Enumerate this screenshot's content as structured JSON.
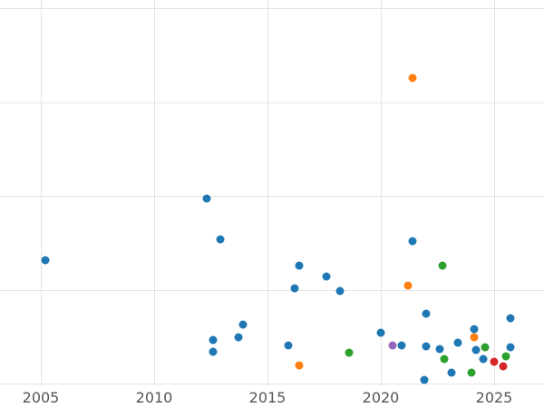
{
  "style": {
    "background": "#ffffff",
    "gridline_color": "#e3e3e3",
    "tick_label_color": "#555555"
  },
  "chart_data": {
    "type": "scatter",
    "title": "",
    "xlabel": "",
    "ylabel": "",
    "xlim": [
      2003.2,
      2027.2
    ],
    "ylim": [
      0,
      100
    ],
    "x_ticks": [
      2005,
      2010,
      2015,
      2020,
      2025
    ],
    "x_tick_labels": [
      "2005",
      "2010",
      "2015",
      "2020",
      "2025"
    ],
    "y_gridlines": [
      0,
      25,
      50,
      75,
      100
    ],
    "grid": true,
    "legend_position": "none",
    "series": [
      {
        "name": "series-blue",
        "color": "#1f77b4",
        "points": [
          [
            2005.2,
            32.9
          ],
          [
            2012.3,
            49.3
          ],
          [
            2012.6,
            11.6
          ],
          [
            2012.6,
            8.5
          ],
          [
            2012.9,
            38.4
          ],
          [
            2013.7,
            12.3
          ],
          [
            2013.9,
            15.7
          ],
          [
            2015.9,
            10.1
          ],
          [
            2016.2,
            25.4
          ],
          [
            2016.4,
            31.4
          ],
          [
            2017.6,
            28.5
          ],
          [
            2018.2,
            24.6
          ],
          [
            2020.0,
            13.5
          ],
          [
            2020.9,
            10.1
          ],
          [
            2021.4,
            37.9
          ],
          [
            2021.9,
            1.0
          ],
          [
            2022.0,
            18.6
          ],
          [
            2022.0,
            9.9
          ],
          [
            2022.6,
            9.2
          ],
          [
            2023.1,
            2.9
          ],
          [
            2023.4,
            10.9
          ],
          [
            2024.1,
            14.5
          ],
          [
            2024.2,
            8.9
          ],
          [
            2024.5,
            6.5
          ],
          [
            2025.7,
            17.4
          ],
          [
            2025.7,
            9.7
          ]
        ]
      },
      {
        "name": "series-orange",
        "color": "#ff7f0e",
        "points": [
          [
            2016.4,
            4.8
          ],
          [
            2021.2,
            26.1
          ],
          [
            2021.4,
            81.4
          ],
          [
            2024.1,
            12.3
          ]
        ]
      },
      {
        "name": "series-green",
        "color": "#2ca02c",
        "points": [
          [
            2018.6,
            8.2
          ],
          [
            2022.7,
            31.4
          ],
          [
            2022.8,
            6.5
          ],
          [
            2024.0,
            2.9
          ],
          [
            2024.6,
            9.7
          ],
          [
            2025.5,
            7.2
          ]
        ]
      },
      {
        "name": "series-red",
        "color": "#d62728",
        "points": [
          [
            2025.0,
            5.8
          ],
          [
            2025.4,
            4.6
          ]
        ]
      },
      {
        "name": "series-purple",
        "color": "#9467bd",
        "points": [
          [
            2020.5,
            10.1
          ]
        ]
      }
    ]
  }
}
